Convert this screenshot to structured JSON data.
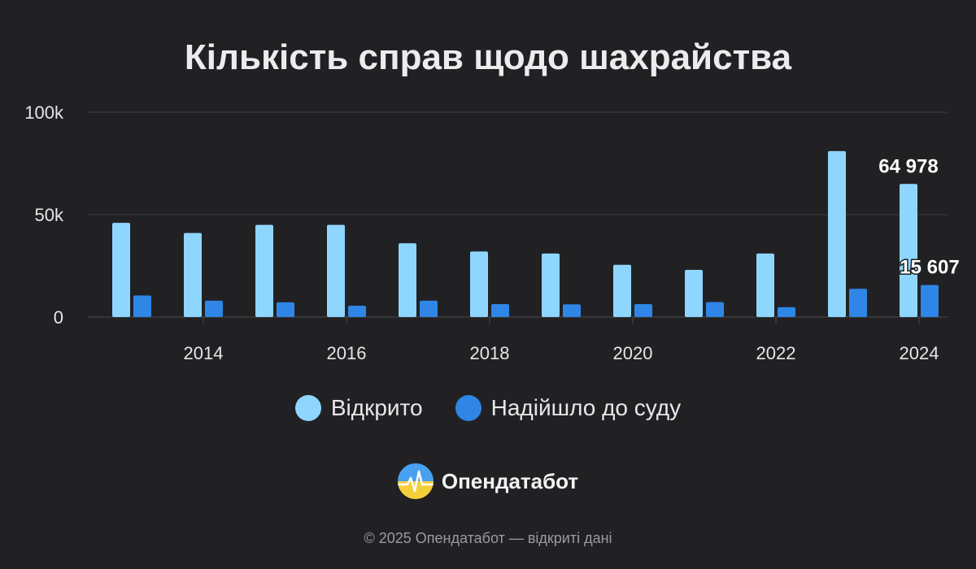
{
  "chart_data": {
    "type": "bar",
    "title": "Кількість справ щодо шахрайства",
    "years": [
      2013,
      2014,
      2015,
      2016,
      2017,
      2018,
      2019,
      2020,
      2021,
      2022,
      2023,
      2024
    ],
    "x_tick_labels": [
      "2014",
      "2016",
      "2018",
      "2020",
      "2022",
      "2024"
    ],
    "y_tick_labels": [
      "0",
      "50k",
      "100k"
    ],
    "ylim": [
      0,
      100000
    ],
    "grid": true,
    "legend_position": "bottom",
    "series": [
      {
        "name": "Відкрито",
        "color": "#8fd6ff",
        "values": [
          46000,
          41000,
          45000,
          45000,
          36000,
          32000,
          31000,
          25500,
          23000,
          31000,
          81000,
          64978
        ]
      },
      {
        "name": "Надійшло до суду",
        "color": "#2f86e6",
        "values": [
          10500,
          8000,
          7200,
          5500,
          8000,
          6300,
          6200,
          6300,
          7300,
          4800,
          13800,
          15607
        ]
      }
    ],
    "annotations": [
      {
        "series": 0,
        "year": 2024,
        "text": "64 978"
      },
      {
        "series": 1,
        "year": 2024,
        "text": "15 607"
      }
    ]
  },
  "legend": {
    "items": [
      {
        "label": "Відкрито",
        "color": "#8fd6ff"
      },
      {
        "label": "Надійшло до суду",
        "color": "#2f86e6"
      }
    ]
  },
  "brand": {
    "name": "Опендатабот",
    "icon": "opendatabot-logo-icon"
  },
  "footer": {
    "text": "© 2025 Опендатабот — відкриті дані"
  }
}
